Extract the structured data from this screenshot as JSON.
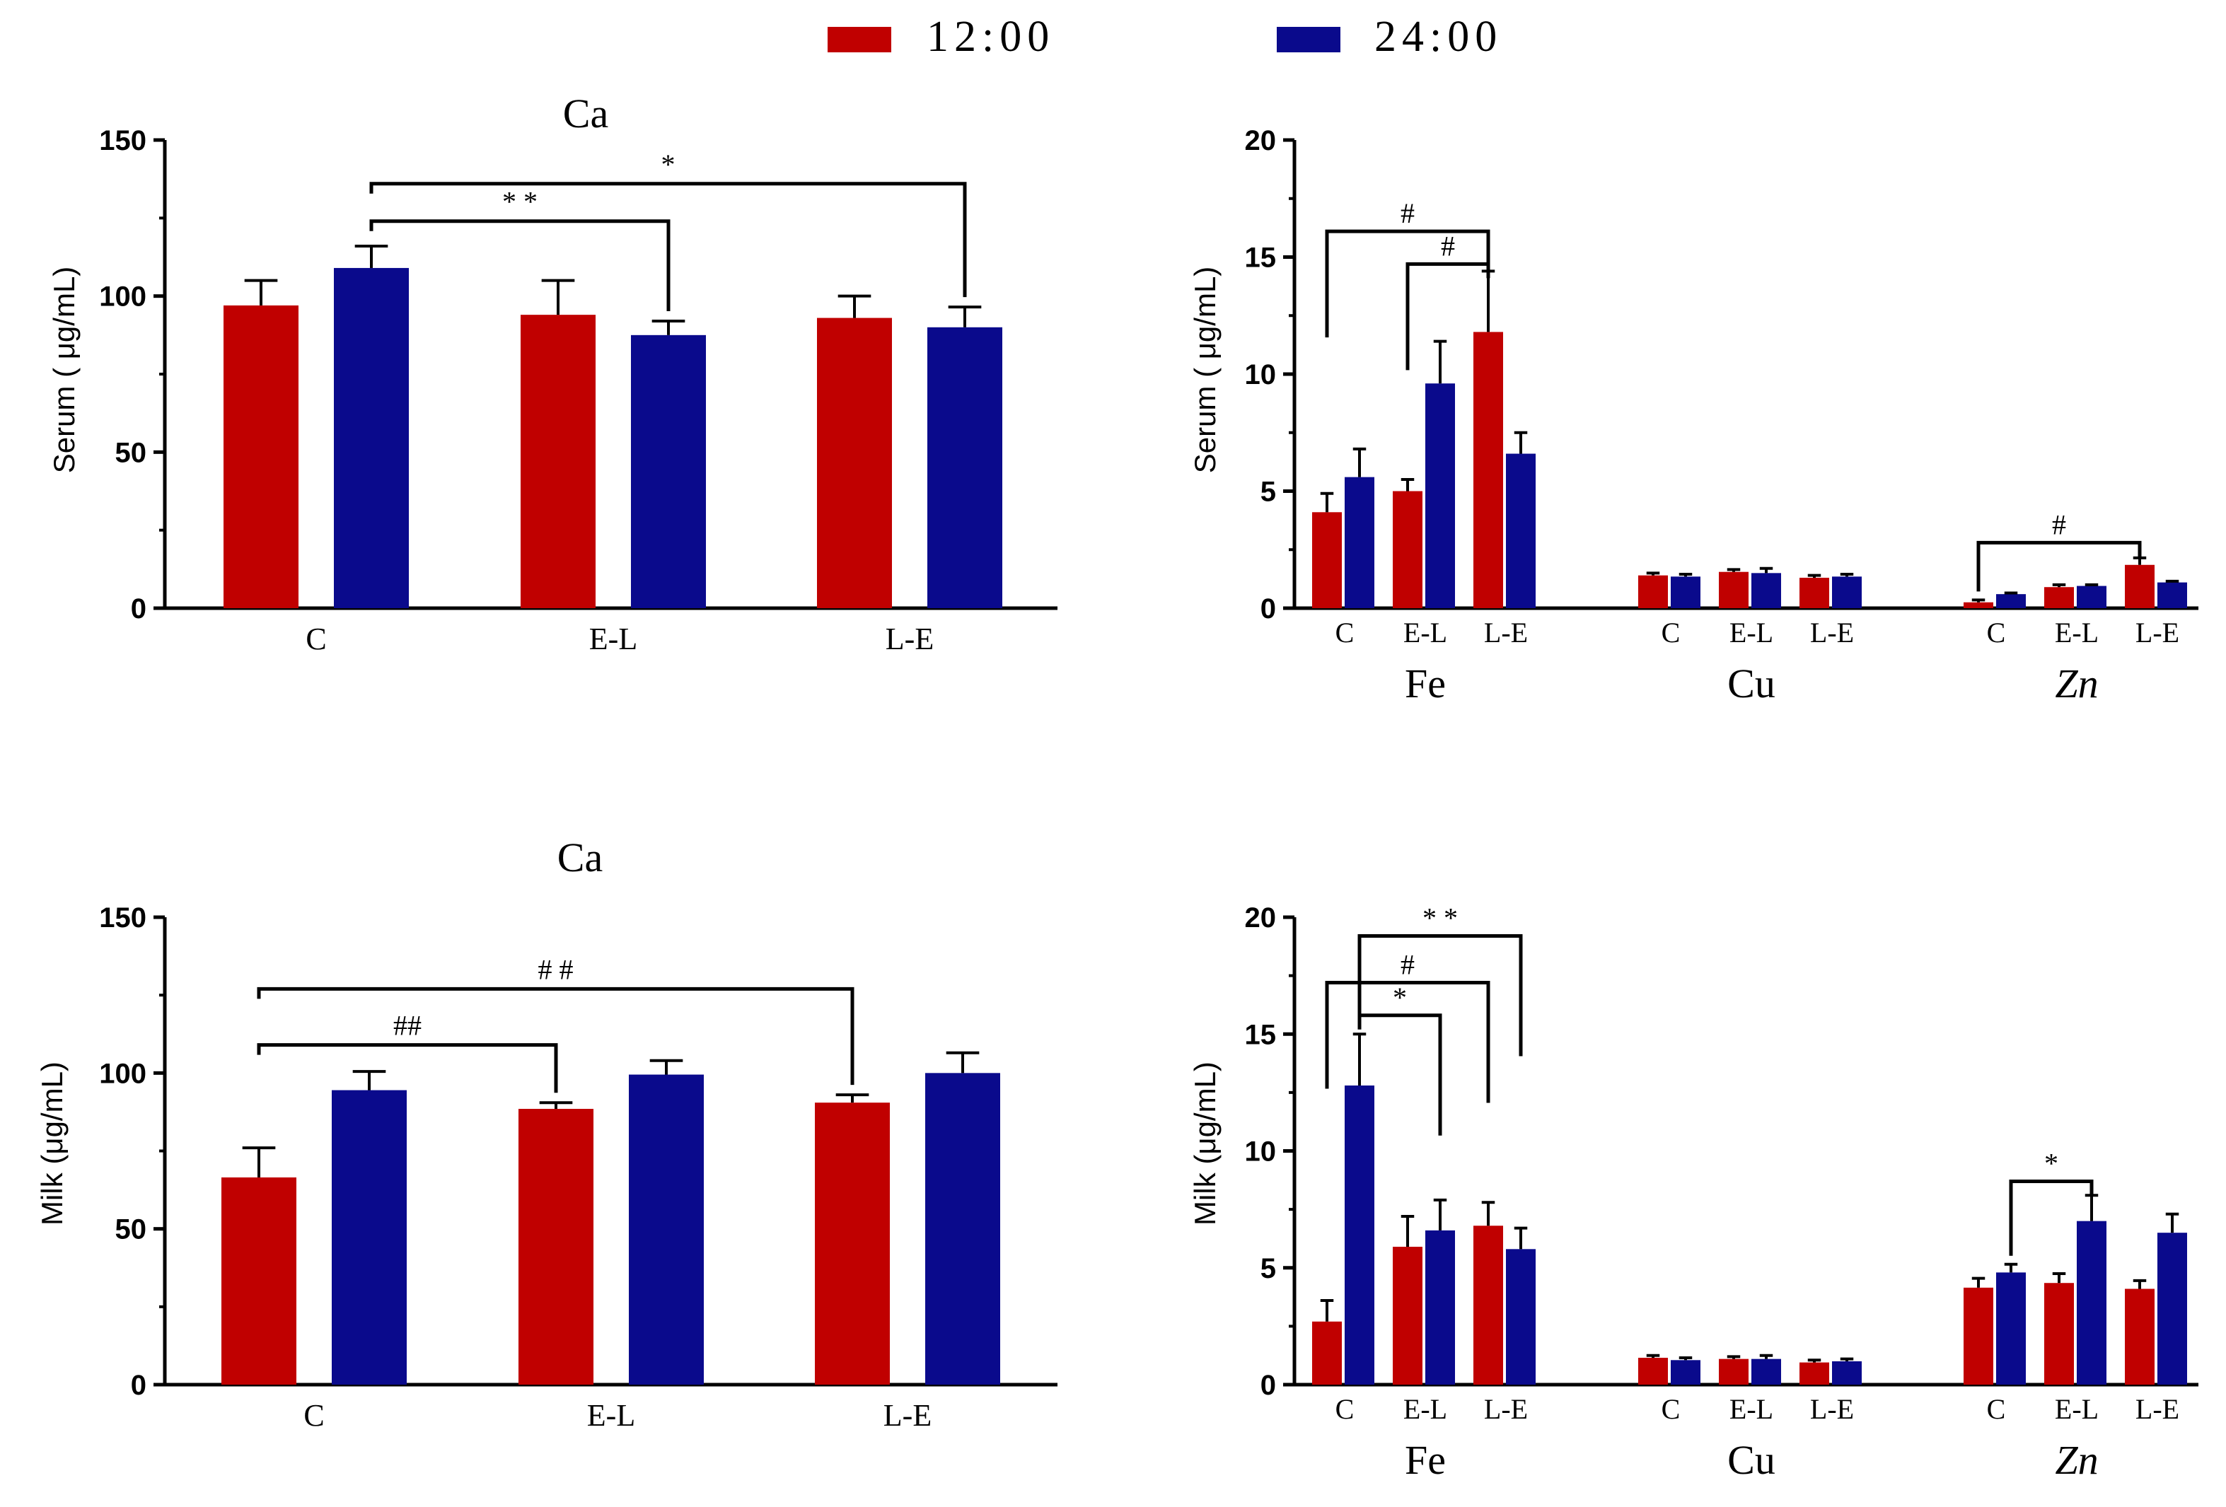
{
  "legend": {
    "items": [
      {
        "label": "12:00",
        "color": "#c00000"
      },
      {
        "label": "24:00",
        "color": "#0a0a8c"
      }
    ]
  },
  "chart_data": [
    {
      "id": "serum-ca",
      "type": "bar",
      "title": "Ca",
      "ylabel": "Serum ( μg/mL)",
      "ylim": [
        0,
        150
      ],
      "yticks": [
        0,
        50,
        100,
        150
      ],
      "groups": [
        "C",
        "E-L",
        "L-E"
      ],
      "series": [
        {
          "name": "12:00",
          "values": [
            97,
            94,
            93
          ],
          "errors": [
            8,
            11,
            7
          ]
        },
        {
          "name": "24:00",
          "values": [
            109,
            87.5,
            90
          ],
          "errors": [
            7,
            4.5,
            6.5
          ]
        }
      ],
      "annotations": [
        {
          "label": "* *",
          "from": [
            "C",
            "24:00"
          ],
          "to": [
            "E-L",
            "24:00"
          ],
          "level": 124
        },
        {
          "label": "*",
          "from": [
            "C",
            "24:00"
          ],
          "to": [
            "L-E",
            "24:00"
          ],
          "level": 136
        }
      ]
    },
    {
      "id": "serum-trace",
      "type": "bar",
      "title": "",
      "ylabel": "Serum ( μg/mL)",
      "ylim": [
        0,
        20
      ],
      "yticks": [
        0,
        5,
        10,
        15,
        20
      ],
      "elements": [
        "Fe",
        "Cu",
        "Zn"
      ],
      "groups": [
        "C",
        "E-L",
        "L-E"
      ],
      "series": [
        {
          "name": "12:00",
          "values": [
            [
              4.1,
              5.0,
              11.8
            ],
            [
              1.4,
              1.55,
              1.3
            ],
            [
              0.25,
              0.9,
              1.85
            ]
          ],
          "errors": [
            [
              0.8,
              0.5,
              2.6
            ],
            [
              0.1,
              0.1,
              0.1
            ],
            [
              0.1,
              0.1,
              0.3
            ]
          ]
        },
        {
          "name": "24:00",
          "values": [
            [
              5.6,
              9.6,
              6.6
            ],
            [
              1.35,
              1.5,
              1.35
            ],
            [
              0.6,
              0.95,
              1.1
            ]
          ],
          "errors": [
            [
              1.2,
              1.8,
              0.9
            ],
            [
              0.1,
              0.2,
              0.1
            ],
            [
              0.05,
              0.05,
              0.05
            ]
          ]
        }
      ],
      "annotations": [
        {
          "label": "#",
          "from": [
            "Fe",
            "C",
            "12:00"
          ],
          "to": [
            "Fe",
            "L-E",
            "12:00"
          ],
          "level": 16.1
        },
        {
          "label": "#",
          "from": [
            "Fe",
            "E-L",
            "12:00"
          ],
          "to": [
            "Fe",
            "L-E",
            "12:00"
          ],
          "level": 14.7
        },
        {
          "label": "#",
          "from": [
            "Zn",
            "C",
            "12:00"
          ],
          "to": [
            "Zn",
            "L-E",
            "12:00"
          ],
          "level": 2.8
        }
      ]
    },
    {
      "id": "milk-ca",
      "type": "bar",
      "title": "Ca",
      "ylabel": "Milk  (μg/mL)",
      "ylim": [
        0,
        150
      ],
      "yticks": [
        0,
        50,
        100,
        150
      ],
      "groups": [
        "C",
        "E-L",
        "L-E"
      ],
      "series": [
        {
          "name": "12:00",
          "values": [
            66.5,
            88.5,
            90.5
          ],
          "errors": [
            9.5,
            2,
            2.5
          ]
        },
        {
          "name": "24:00",
          "values": [
            94.5,
            99.5,
            100
          ],
          "errors": [
            6,
            4.5,
            6.5
          ]
        }
      ],
      "annotations": [
        {
          "label": "# #",
          "from": [
            "C",
            "12:00"
          ],
          "to": [
            "L-E",
            "12:00"
          ],
          "level": 127
        },
        {
          "label": "##",
          "from": [
            "C",
            "12:00"
          ],
          "to": [
            "E-L",
            "12:00"
          ],
          "level": 109
        }
      ]
    },
    {
      "id": "milk-trace",
      "type": "bar",
      "title": "",
      "ylabel": "Milk  (μg/mL)",
      "ylim": [
        0,
        20
      ],
      "yticks": [
        0,
        5,
        10,
        15,
        20
      ],
      "elements": [
        "Fe",
        "Cu",
        "Zn"
      ],
      "groups": [
        "C",
        "E-L",
        "L-E"
      ],
      "series": [
        {
          "name": "12:00",
          "values": [
            [
              2.7,
              5.9,
              6.8
            ],
            [
              1.15,
              1.1,
              0.95
            ],
            [
              4.15,
              4.35,
              4.1
            ]
          ],
          "errors": [
            [
              0.9,
              1.3,
              1.0
            ],
            [
              0.1,
              0.1,
              0.1
            ],
            [
              0.4,
              0.4,
              0.35
            ]
          ]
        },
        {
          "name": "24:00",
          "values": [
            [
              12.8,
              6.6,
              5.8
            ],
            [
              1.05,
              1.1,
              1.0
            ],
            [
              4.8,
              7.0,
              6.5
            ]
          ],
          "errors": [
            [
              2.2,
              1.3,
              0.9
            ],
            [
              0.1,
              0.15,
              0.1
            ],
            [
              0.35,
              1.1,
              0.8
            ]
          ]
        }
      ],
      "annotations": [
        {
          "label": "* *",
          "from": [
            "Fe",
            "C",
            "24:00"
          ],
          "to": [
            "Fe",
            "L-E",
            "24:00"
          ],
          "level": 19.2
        },
        {
          "label": "#",
          "from": [
            "Fe",
            "C",
            "12:00"
          ],
          "to": [
            "Fe",
            "L-E",
            "12:00"
          ],
          "level": 17.2
        },
        {
          "label": "*",
          "from": [
            "Fe",
            "C",
            "24:00"
          ],
          "to": [
            "Fe",
            "E-L",
            "24:00"
          ],
          "level": 15.8
        },
        {
          "label": "*",
          "from": [
            "Zn",
            "C",
            "24:00"
          ],
          "to": [
            "Zn",
            "E-L",
            "24:00"
          ],
          "level": 8.7
        }
      ]
    }
  ]
}
